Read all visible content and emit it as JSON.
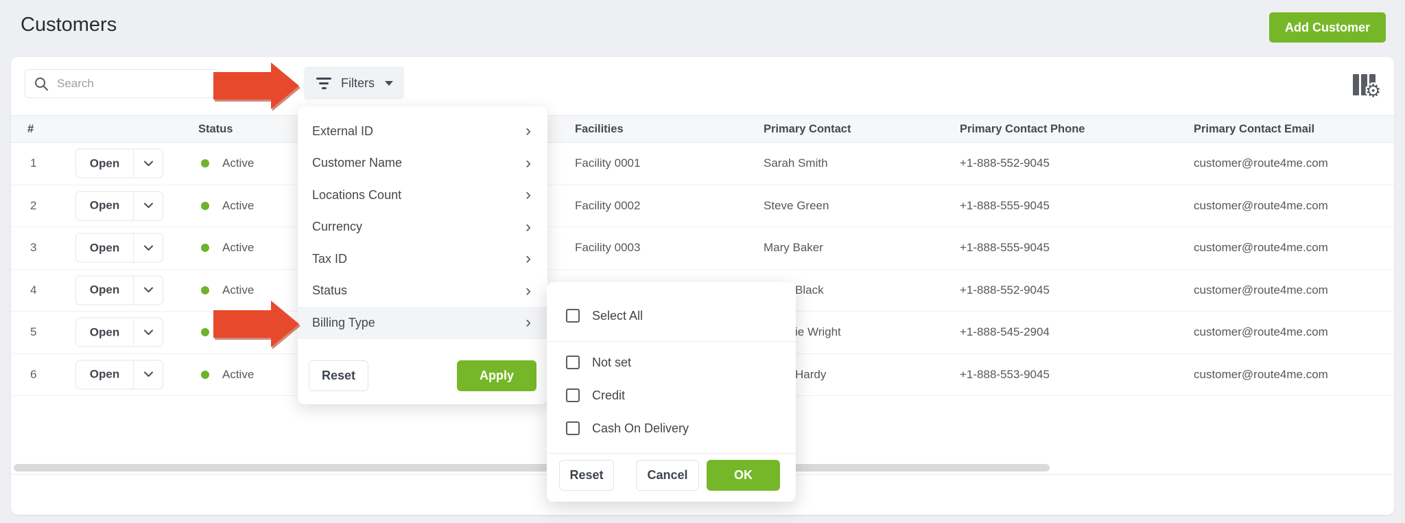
{
  "page": {
    "title": "Customers",
    "add_customer_label": "Add Customer"
  },
  "toolbar": {
    "search_placeholder": "Search",
    "filters_label": "Filters"
  },
  "table": {
    "headers": {
      "index": "#",
      "status": "Status",
      "facilities": "Facilities",
      "contact": "Primary Contact",
      "phone": "Primary Contact Phone",
      "email": "Primary Contact Email"
    },
    "open_label": "Open",
    "rows": [
      {
        "index": "1",
        "status": "Active",
        "facility": "Facility 0001",
        "contact": "Sarah Smith",
        "contact_occluded": false,
        "phone": "+1-888-552-9045",
        "email": "customer@route4me.com"
      },
      {
        "index": "2",
        "status": "Active",
        "facility": "Facility 0002",
        "contact": "Steve Green",
        "contact_occluded": false,
        "phone": "+1-888-555-9045",
        "email": "customer@route4me.com"
      },
      {
        "index": "3",
        "status": "Active",
        "facility": "Facility 0003",
        "contact": "Mary Baker",
        "contact_occluded": false,
        "phone": "+1-888-555-9045",
        "email": "customer@route4me.com"
      },
      {
        "index": "4",
        "status": "Active",
        "facility": "",
        "contact": "Black",
        "contact_occluded": true,
        "phone": "+1-888-552-9045",
        "email": "customer@route4me.com"
      },
      {
        "index": "5",
        "status": "Active",
        "facility": "",
        "contact": "ie Wright",
        "contact_occluded": true,
        "phone": "+1-888-545-2904",
        "email": "customer@route4me.com"
      },
      {
        "index": "6",
        "status": "Active",
        "facility": "",
        "contact": "Hardy",
        "contact_occluded": true,
        "phone": "+1-888-553-9045",
        "email": "customer@route4me.com"
      }
    ]
  },
  "filters_menu": {
    "items": [
      "External ID",
      "Customer Name",
      "Locations Count",
      "Currency",
      "Tax ID",
      "Status",
      "Billing Type"
    ],
    "highlighted_item": "Billing Type",
    "reset_label": "Reset",
    "apply_label": "Apply"
  },
  "billing_type_popup": {
    "select_all_label": "Select All",
    "options": [
      "Not set",
      "Credit",
      "Cash On Delivery"
    ],
    "reset_label": "Reset",
    "cancel_label": "Cancel",
    "ok_label": "OK"
  },
  "colors": {
    "accent_green": "#76b729",
    "status_green": "#6fb22c",
    "arrow_red": "#e7492c"
  }
}
